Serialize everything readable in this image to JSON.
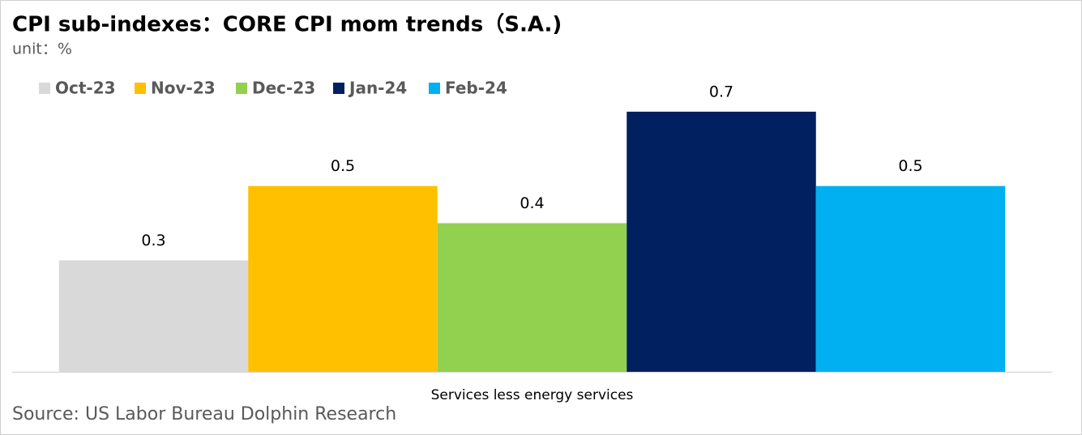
{
  "chart_data": {
    "type": "bar",
    "title": "CPI sub-indexes：CORE CPI mom trends（S.A.)",
    "subtitle": "unit：%",
    "source": "Source: US Labor Bureau Dolphin Research",
    "categories": [
      "Services less energy services"
    ],
    "series": [
      {
        "name": "Oct-23",
        "color": "#d9d9d9",
        "values": [
          0.3
        ]
      },
      {
        "name": "Nov-23",
        "color": "#ffc000",
        "values": [
          0.5
        ]
      },
      {
        "name": "Dec-23",
        "color": "#92d050",
        "values": [
          0.4
        ]
      },
      {
        "name": "Jan-24",
        "color": "#002060",
        "values": [
          0.7
        ]
      },
      {
        "name": "Feb-24",
        "color": "#00b0f0",
        "values": [
          0.5
        ]
      }
    ],
    "ylim": [
      0,
      0.8
    ],
    "legend": "top-left"
  }
}
